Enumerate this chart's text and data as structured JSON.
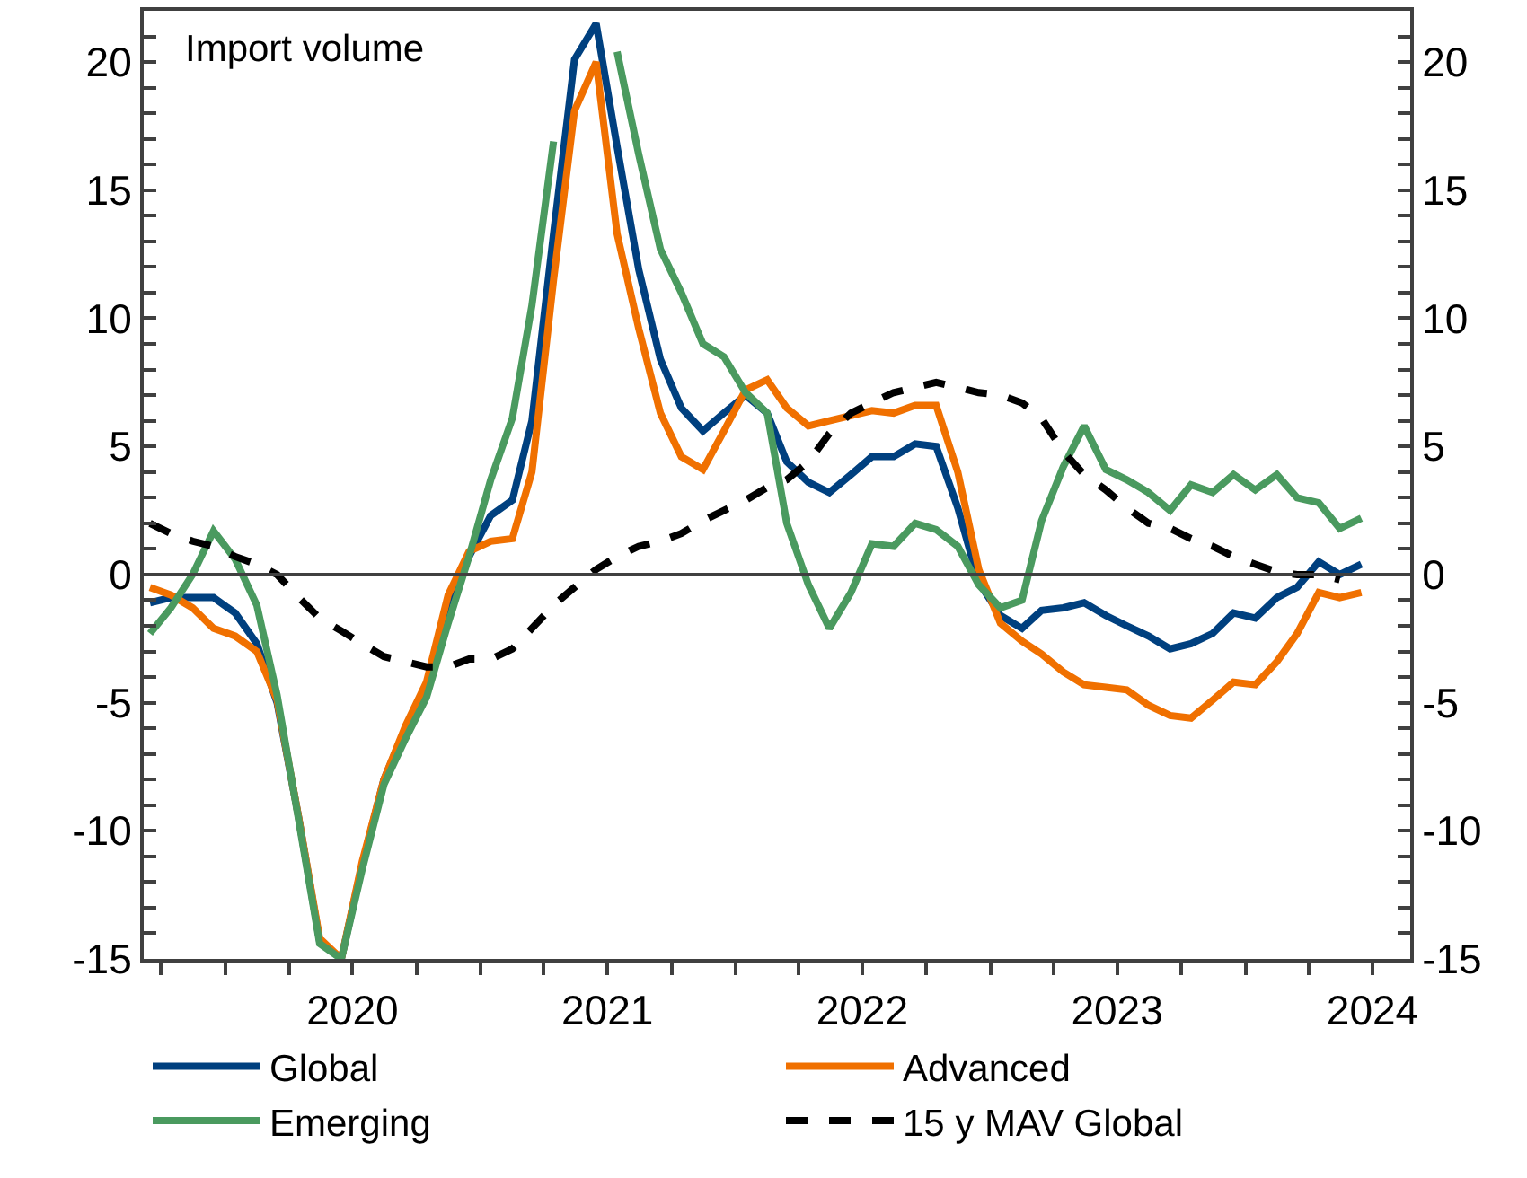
{
  "chart_data": {
    "type": "line",
    "x": [
      "2019-09-15",
      "2019-10-15",
      "2019-11-15",
      "2019-12-15",
      "2020-01-15",
      "2020-02-15",
      "2020-03-15",
      "2020-04-15",
      "2020-05-15",
      "2020-06-15",
      "2020-07-15",
      "2020-08-15",
      "2020-09-15",
      "2020-10-15",
      "2020-11-15",
      "2020-12-15",
      "2021-01-15",
      "2021-02-15",
      "2021-03-15",
      "2021-04-15",
      "2021-05-15",
      "2021-06-15",
      "2021-07-15",
      "2021-08-15",
      "2021-09-15",
      "2021-10-15",
      "2021-11-15",
      "2021-12-15",
      "2022-01-15",
      "2022-02-15",
      "2022-03-15",
      "2022-04-15",
      "2022-05-15",
      "2022-06-15",
      "2022-07-15",
      "2022-08-15",
      "2022-09-15",
      "2022-10-15",
      "2022-11-15",
      "2022-12-15",
      "2023-01-15",
      "2023-02-15",
      "2023-03-15",
      "2023-04-15",
      "2023-05-15",
      "2023-06-15",
      "2023-07-15",
      "2023-08-15",
      "2023-09-15",
      "2023-10-15",
      "2023-11-15",
      "2023-12-15",
      "2024-01-15",
      "2024-02-15",
      "2024-03-15",
      "2024-04-15",
      "2024-05-15",
      "2024-06-15"
    ],
    "series": [
      {
        "name": "Global",
        "color": "#00407f",
        "values": [
          -1.1,
          -0.9,
          -0.9,
          -0.9,
          -1.5,
          -2.7,
          -5.0,
          -9.5,
          -14.3,
          -15,
          -11.3,
          -8.0,
          -6.0,
          -4.4,
          -1.0,
          0.7,
          2.3,
          2.9,
          6.0,
          13.3,
          20.1,
          21.5,
          16.7,
          11.9,
          8.4,
          6.5,
          5.6,
          6.3,
          7.0,
          6.3,
          4.4,
          3.6,
          3.2,
          3.9,
          4.6,
          4.6,
          5.1,
          5.0,
          2.6,
          -0.3,
          -1.6,
          -2.1,
          -1.4,
          -1.3,
          -1.1,
          -1.6,
          -2.0,
          -2.4,
          -2.9,
          -2.7,
          -2.3,
          -1.5,
          -1.7,
          -0.9,
          -0.5,
          0.5,
          0.0,
          0.4
        ]
      },
      {
        "name": "Advanced",
        "color": "#f07000",
        "values": [
          -0.5,
          -0.8,
          -1.3,
          -2.1,
          -2.4,
          -3.0,
          -4.9,
          -9.5,
          -14.2,
          -15,
          -11.2,
          -8.0,
          -5.9,
          -4.2,
          -0.8,
          0.9,
          1.3,
          1.4,
          4.0,
          11.5,
          18.1,
          20.0,
          13.3,
          9.6,
          6.3,
          4.6,
          4.1,
          5.6,
          7.2,
          7.6,
          6.5,
          5.8,
          6.0,
          6.2,
          6.4,
          6.3,
          6.6,
          6.6,
          4.0,
          0.2,
          -1.9,
          -2.6,
          -3.1,
          -3.8,
          -4.3,
          -4.4,
          -4.5,
          -5.1,
          -5.5,
          -5.6,
          -4.9,
          -4.2,
          -4.3,
          -3.4,
          -2.3,
          -0.7,
          -0.9,
          -0.7
        ]
      },
      {
        "name": "Emerging",
        "color": "#4a9a5f",
        "values": [
          -2.3,
          -1.3,
          0.0,
          1.7,
          0.6,
          -1.2,
          -4.7,
          -9.6,
          -14.4,
          -15,
          -11.5,
          -8.2,
          -6.4,
          -4.8,
          -1.9,
          0.7,
          3.7,
          6.1,
          10.5,
          16.9,
          null,
          null,
          20.4,
          16.4,
          12.7,
          11.0,
          9.0,
          8.5,
          7.1,
          6.3,
          2.0,
          -0.4,
          -2.1,
          -0.7,
          1.2,
          1.1,
          2.0,
          1.75,
          1.1,
          -0.4,
          -1.3,
          -1.0,
          2.1,
          4.2,
          5.8,
          4.1,
          3.7,
          3.2,
          2.5,
          3.5,
          3.2,
          3.9,
          3.3,
          3.9,
          3.0,
          2.8,
          1.8,
          2.2
        ]
      },
      {
        "name": "15 y MAV Global",
        "color": "#000000",
        "line_style": "dashed",
        "values": [
          2.0,
          1.6,
          1.3,
          1.1,
          0.7,
          0.4,
          0.0,
          -0.9,
          -1.7,
          -2.2,
          -2.7,
          -3.2,
          -3.4,
          -3.6,
          -3.6,
          -3.3,
          -3.3,
          -2.9,
          -2.1,
          -1.2,
          -0.5,
          0.2,
          0.7,
          1.1,
          1.3,
          1.6,
          2.1,
          2.5,
          2.9,
          3.4,
          3.7,
          4.4,
          5.5,
          6.3,
          6.7,
          7.1,
          7.3,
          7.5,
          7.3,
          7.1,
          7.0,
          6.7,
          6.1,
          4.8,
          3.9,
          3.3,
          2.6,
          2.0,
          1.8,
          1.4,
          1.1,
          0.7,
          0.4,
          0.1,
          0.0,
          0.0,
          -0.2,
          null
        ]
      }
    ],
    "line_style": "solid",
    "marker": "none",
    "legend": "bottom",
    "annotations": [
      "Import volume"
    ],
    "ref_lines": [
      {
        "axis": "y",
        "value": 0,
        "color": "#404040"
      }
    ],
    "xlim": [
      "2019-09-06",
      "2024-08-24"
    ],
    "xticks": [
      {
        "value": "2019-10-01",
        "label": null
      },
      {
        "value": "2020-01-01",
        "label": null
      },
      {
        "value": "2020-04-01",
        "label": null
      },
      {
        "value": "2020-07-01",
        "label": "2020"
      },
      {
        "value": "2020-10-01",
        "label": null
      },
      {
        "value": "2021-01-01",
        "label": null
      },
      {
        "value": "2021-04-01",
        "label": null
      },
      {
        "value": "2021-07-01",
        "label": "2021"
      },
      {
        "value": "2021-10-01",
        "label": null
      },
      {
        "value": "2022-01-01",
        "label": null
      },
      {
        "value": "2022-04-01",
        "label": null
      },
      {
        "value": "2022-07-01",
        "label": "2022"
      },
      {
        "value": "2022-10-01",
        "label": null
      },
      {
        "value": "2023-01-01",
        "label": null
      },
      {
        "value": "2023-04-01",
        "label": null
      },
      {
        "value": "2023-07-01",
        "label": "2023"
      },
      {
        "value": "2023-10-01",
        "label": null
      },
      {
        "value": "2024-01-01",
        "label": null
      },
      {
        "value": "2024-04-01",
        "label": null
      },
      {
        "value": "2024-07-01",
        "label": "2024"
      }
    ],
    "ylim": [
      -15,
      22
    ],
    "yticks": [
      -15,
      {
        "value": -14,
        "label": null
      },
      {
        "value": -13,
        "label": null
      },
      {
        "value": -12,
        "label": null
      },
      {
        "value": -11,
        "label": null
      },
      -10,
      {
        "value": -9,
        "label": null
      },
      {
        "value": -8,
        "label": null
      },
      {
        "value": -7,
        "label": null
      },
      {
        "value": -6,
        "label": null
      },
      -5,
      {
        "value": -4,
        "label": null
      },
      {
        "value": -3,
        "label": null
      },
      {
        "value": -2,
        "label": null
      },
      {
        "value": -1,
        "label": null
      },
      0,
      {
        "value": 1,
        "label": null
      },
      {
        "value": 2,
        "label": null
      },
      {
        "value": 3,
        "label": null
      },
      {
        "value": 4,
        "label": null
      },
      5,
      {
        "value": 6,
        "label": null
      },
      {
        "value": 7,
        "label": null
      },
      {
        "value": 8,
        "label": null
      },
      {
        "value": 9,
        "label": null
      },
      10,
      {
        "value": 11,
        "label": null
      },
      {
        "value": 12,
        "label": null
      },
      {
        "value": 13,
        "label": null
      },
      {
        "value": 14,
        "label": null
      },
      15,
      {
        "value": 16,
        "label": null
      },
      {
        "value": 17,
        "label": null
      },
      {
        "value": 18,
        "label": null
      },
      {
        "value": 19,
        "label": null
      },
      20,
      {
        "value": 21,
        "label": null
      }
    ],
    "y2lim": [
      -15,
      22
    ],
    "y2ticks": [
      -15,
      {
        "value": -14,
        "label": null
      },
      {
        "value": -13,
        "label": null
      },
      {
        "value": -12,
        "label": null
      },
      {
        "value": -11,
        "label": null
      },
      -10,
      {
        "value": -9,
        "label": null
      },
      {
        "value": -8,
        "label": null
      },
      {
        "value": -7,
        "label": null
      },
      {
        "value": -6,
        "label": null
      },
      -5,
      {
        "value": -4,
        "label": null
      },
      {
        "value": -3,
        "label": null
      },
      {
        "value": -2,
        "label": null
      },
      {
        "value": -1,
        "label": null
      },
      0,
      {
        "value": 1,
        "label": null
      },
      {
        "value": 2,
        "label": null
      },
      {
        "value": 3,
        "label": null
      },
      {
        "value": 4,
        "label": null
      },
      5,
      {
        "value": 6,
        "label": null
      },
      {
        "value": 7,
        "label": null
      },
      {
        "value": 8,
        "label": null
      },
      {
        "value": 9,
        "label": null
      },
      10,
      {
        "value": 11,
        "label": null
      },
      {
        "value": 12,
        "label": null
      },
      {
        "value": 13,
        "label": null
      },
      {
        "value": 14,
        "label": null
      },
      15,
      {
        "value": 16,
        "label": null
      },
      {
        "value": 17,
        "label": null
      },
      {
        "value": 18,
        "label": null
      },
      {
        "value": 19,
        "label": null
      },
      20,
      {
        "value": 21,
        "label": null
      }
    ]
  }
}
